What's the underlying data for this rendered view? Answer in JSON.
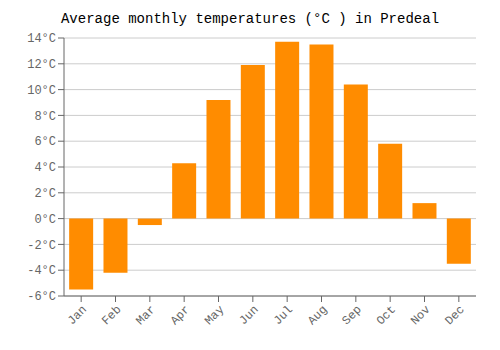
{
  "chart_data": {
    "type": "bar",
    "title": "Average monthly temperatures (°C ) in Predeal",
    "categories": [
      "Jan",
      "Feb",
      "Mar",
      "Apr",
      "May",
      "Jun",
      "Jul",
      "Aug",
      "Sep",
      "Oct",
      "Nov",
      "Dec"
    ],
    "values": [
      -5.5,
      -4.2,
      -0.5,
      4.3,
      9.2,
      11.9,
      13.7,
      13.5,
      10.4,
      5.8,
      1.2,
      -3.5
    ],
    "color": "#FF8C00",
    "ylim": [
      -6,
      14
    ],
    "yticks": [
      {
        "value": -6,
        "label": "-6°C"
      },
      {
        "value": -4,
        "label": "-4°C"
      },
      {
        "value": -2,
        "label": "-2°C"
      },
      {
        "value": 0,
        "label": "0°C"
      },
      {
        "value": 2,
        "label": "2°C"
      },
      {
        "value": 4,
        "label": "4°C"
      },
      {
        "value": 6,
        "label": "6°C"
      },
      {
        "value": 8,
        "label": "8°C"
      },
      {
        "value": 10,
        "label": "10°C"
      },
      {
        "value": 12,
        "label": "12°C"
      },
      {
        "value": 14,
        "label": "14°C"
      }
    ],
    "grid": true
  }
}
